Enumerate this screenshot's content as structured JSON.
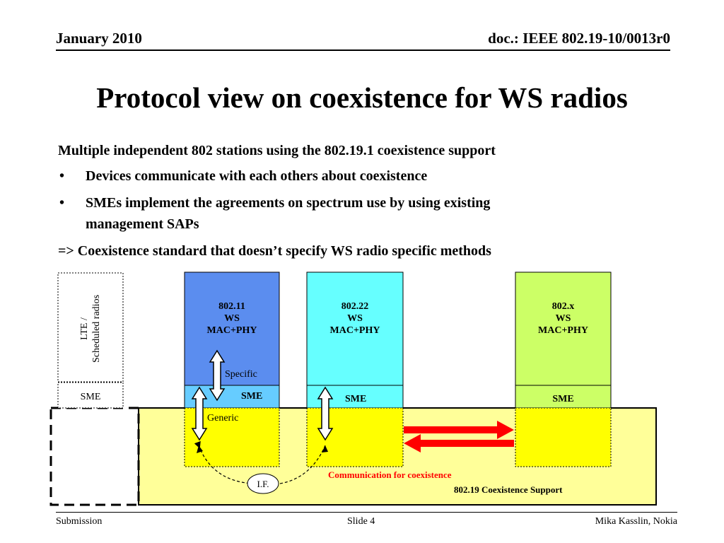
{
  "header": {
    "date": "January 2010",
    "doc_id": "doc.: IEEE 802.19-10/0013r0"
  },
  "slide": {
    "title": "Protocol view on coexistence for WS radios",
    "intro": "Multiple independent 802 stations using the 802.19.1 coexistence support",
    "bullets": [
      "Devices communicate with each others about coexistence",
      "SMEs implement the agreements on spectrum use by using existing",
      "management SAPs"
    ],
    "bullet_glyph": "•",
    "conclusion": "=> Coexistence standard that doesn’t specify WS radio specific methods"
  },
  "diagram": {
    "lte_box": {
      "line1": "LTE /",
      "line2": "Scheduled radios",
      "sme": "SME"
    },
    "stacks": [
      {
        "line1": "802.11",
        "line2": "WS",
        "line3": "MAC+PHY",
        "sme": "SME",
        "color": "#5B8DEF"
      },
      {
        "line1": "802.22",
        "line2": "WS",
        "line3": "MAC+PHY",
        "sme": "SME",
        "color": "#66FFFF"
      },
      {
        "line1": "802.x",
        "line2": "WS",
        "line3": "MAC+PHY",
        "sme": "SME",
        "color": "#CCFF66"
      }
    ],
    "specific_label": "Specific",
    "generic_label": "Generic",
    "if_label": "I.F.",
    "communication_label": "Communication for coexistence",
    "coexistence_support_label": "802.19 Coexistence Support",
    "colors": {
      "support_bg": "#FFFF99",
      "coex_fill": "#FFFF00",
      "arrow_red": "#FF0000",
      "comm_text": "#FF0000"
    }
  },
  "footer": {
    "left": "Submission",
    "center": "Slide 4",
    "right": "Mika Kasslin, Nokia"
  }
}
